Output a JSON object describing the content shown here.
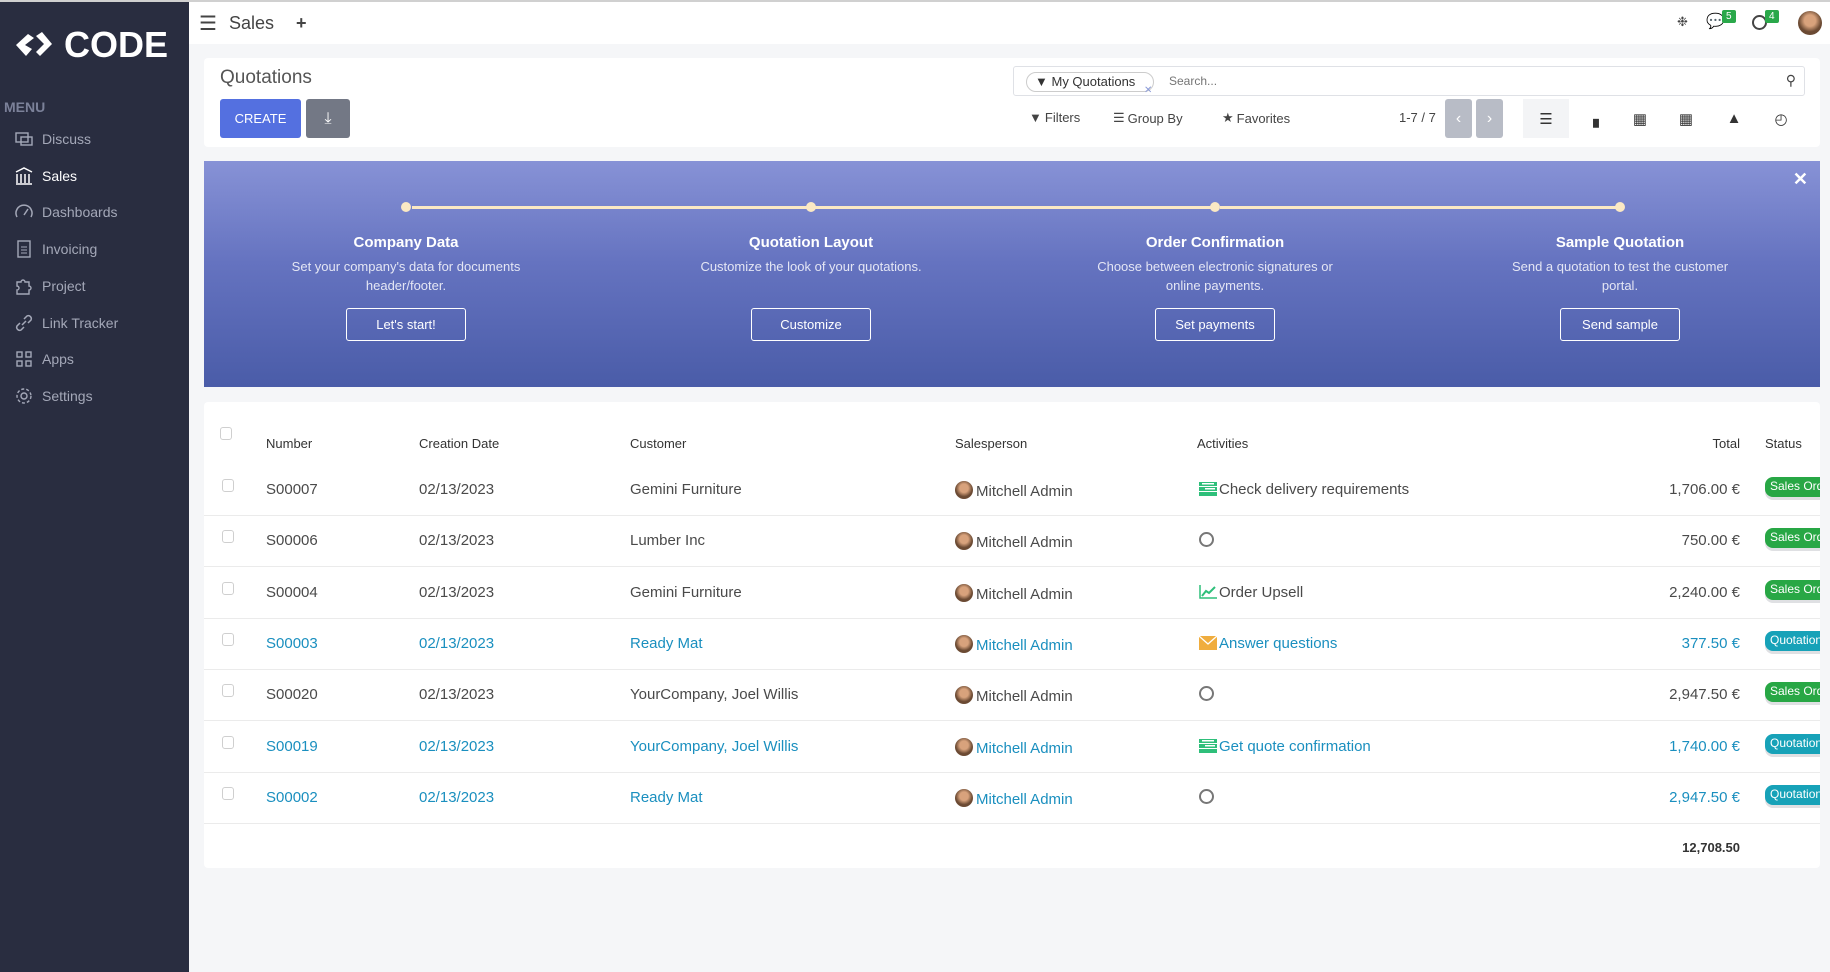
{
  "brand": {
    "name": "CODE"
  },
  "sidebar": {
    "heading": "MENU",
    "items": [
      {
        "label": "Discuss",
        "icon": "chat-icon"
      },
      {
        "label": "Sales",
        "icon": "bank-icon",
        "active": true
      },
      {
        "label": "Dashboards",
        "icon": "gauge-icon"
      },
      {
        "label": "Invoicing",
        "icon": "invoice-icon"
      },
      {
        "label": "Project",
        "icon": "puzzle-icon"
      },
      {
        "label": "Link Tracker",
        "icon": "link-icon"
      },
      {
        "label": "Apps",
        "icon": "grid-icon"
      },
      {
        "label": "Settings",
        "icon": "gear-icon"
      }
    ]
  },
  "topbar": {
    "app": "Sales",
    "messages_count": "5",
    "activities_count": "4"
  },
  "control": {
    "title": "Quotations",
    "create": "CREATE",
    "facet": "My Quotations",
    "search_placeholder": "Search...",
    "filters": "Filters",
    "group_by": "Group By",
    "favorites": "Favorites",
    "pager": "1-7 / 7"
  },
  "banner": {
    "steps": [
      {
        "title": "Company Data",
        "desc": "Set your company's data for documents header/footer.",
        "button": "Let's start!"
      },
      {
        "title": "Quotation Layout",
        "desc": "Customize the look of your quotations.",
        "button": "Customize"
      },
      {
        "title": "Order Confirmation",
        "desc": "Choose between electronic signatures or online payments.",
        "button": "Set payments"
      },
      {
        "title": "Sample Quotation",
        "desc": "Send a quotation to test the customer portal.",
        "button": "Send sample"
      }
    ]
  },
  "table": {
    "headers": {
      "number": "Number",
      "date": "Creation Date",
      "customer": "Customer",
      "salesperson": "Salesperson",
      "activities": "Activities",
      "total": "Total",
      "status": "Status"
    },
    "rows": [
      {
        "number": "S00007",
        "date": "02/13/2023",
        "customer": "Gemini Furniture",
        "salesperson": "Mitchell Admin",
        "activity": "Check delivery requirements",
        "activity_icon": "todo-icon",
        "total": "1,706.00 €",
        "status": "Sales Order",
        "kind": "so"
      },
      {
        "number": "S00006",
        "date": "02/13/2023",
        "customer": "Lumber Inc",
        "salesperson": "Mitchell Admin",
        "activity": "",
        "activity_icon": "clock-icon",
        "total": "750.00 €",
        "status": "Sales Order",
        "kind": "so"
      },
      {
        "number": "S00004",
        "date": "02/13/2023",
        "customer": "Gemini Furniture",
        "salesperson": "Mitchell Admin",
        "activity": "Order Upsell",
        "activity_icon": "chart-icon",
        "total": "2,240.00 €",
        "status": "Sales Order",
        "kind": "so"
      },
      {
        "number": "S00003",
        "date": "02/13/2023",
        "customer": "Ready Mat",
        "salesperson": "Mitchell Admin",
        "activity": "Answer questions",
        "activity_icon": "envelope-icon",
        "total": "377.50 €",
        "status": "Quotation",
        "kind": "q"
      },
      {
        "number": "S00020",
        "date": "02/13/2023",
        "customer": "YourCompany, Joel Willis",
        "salesperson": "Mitchell Admin",
        "activity": "",
        "activity_icon": "clock-icon",
        "total": "2,947.50 €",
        "status": "Sales Order",
        "kind": "so"
      },
      {
        "number": "S00019",
        "date": "02/13/2023",
        "customer": "YourCompany, Joel Willis",
        "salesperson": "Mitchell Admin",
        "activity": "Get quote confirmation",
        "activity_icon": "todo-icon",
        "total": "1,740.00 €",
        "status": "Quotation",
        "kind": "q"
      },
      {
        "number": "S00002",
        "date": "02/13/2023",
        "customer": "Ready Mat",
        "salesperson": "Mitchell Admin",
        "activity": "",
        "activity_icon": "clock-icon",
        "total": "2,947.50 €",
        "status": "Quotation",
        "kind": "q"
      }
    ],
    "sum_total": "12,708.50"
  },
  "colors": {
    "sidebar": "#292d40",
    "primary": "#5470e0",
    "link": "#1a8fbf",
    "sales_order": "#28a745",
    "quotation": "#17a2b8"
  }
}
